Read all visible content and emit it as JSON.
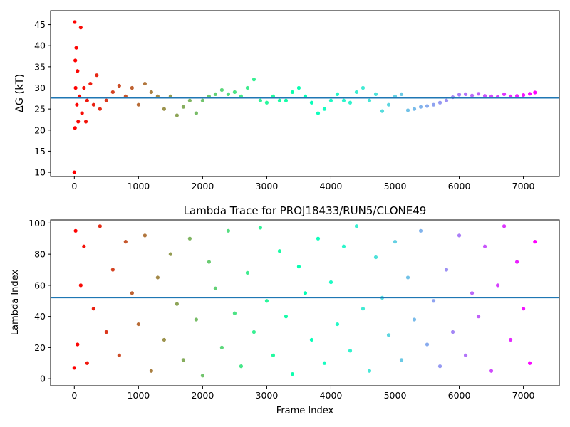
{
  "chart_data": [
    {
      "type": "scatter",
      "title": "",
      "xlabel": "",
      "ylabel": "ΔG (kT)",
      "xlim": [
        -370,
        7560
      ],
      "ylim": [
        9,
        48.3
      ],
      "xticks": [
        0,
        1000,
        2000,
        3000,
        4000,
        5000,
        6000,
        7000
      ],
      "yticks": [
        10,
        15,
        20,
        25,
        30,
        35,
        40,
        45
      ],
      "hline": 27.6,
      "hline_color": "#1f77b4",
      "colormap": "rainbow_r",
      "series": [
        {
          "x": [
            0,
            5,
            10,
            15,
            20,
            30,
            40,
            50,
            60,
            80,
            100,
            120,
            150,
            180,
            200,
            250,
            300,
            350,
            400,
            500,
            600,
            700,
            800,
            900,
            1000,
            1100,
            1200,
            1300,
            1400,
            1500,
            1600,
            1700,
            1800,
            1900,
            2000,
            2100,
            2200,
            2300,
            2400,
            2500,
            2600,
            2700,
            2800,
            2900,
            3000,
            3100,
            3200,
            3300,
            3400,
            3500,
            3600,
            3700,
            3800,
            3900,
            4000,
            4100,
            4200,
            4300,
            4400,
            4500,
            4600,
            4700,
            4800,
            4900,
            5000,
            5100,
            5200,
            5300,
            5400,
            5500,
            5600,
            5700,
            5800,
            5900,
            6000,
            6100,
            6200,
            6300,
            6400,
            6500,
            6600,
            6700,
            6800,
            6900,
            7000,
            7100,
            7180
          ],
          "y": [
            10,
            45.6,
            20.5,
            36.5,
            30,
            39.5,
            26,
            34,
            22,
            28,
            44.3,
            24,
            30,
            22,
            27,
            31,
            26,
            33,
            25,
            27,
            29,
            30.5,
            28,
            30,
            26,
            31,
            29,
            28,
            25,
            28,
            23.5,
            25.5,
            27,
            24,
            27,
            28,
            28.5,
            29.5,
            28.5,
            29,
            28,
            30,
            32,
            27,
            26.5,
            28,
            27,
            27,
            29,
            30,
            28,
            26.5,
            24,
            25,
            27,
            28.5,
            27,
            26.5,
            29,
            30,
            27,
            28.5,
            24.5,
            26,
            28,
            28.5,
            24.7,
            25,
            25.5,
            25.7,
            26,
            26.5,
            27,
            27.8,
            28.4,
            28.5,
            28.2,
            28.6,
            28.1,
            28.0,
            27.9,
            28.5,
            28.0,
            28.1,
            28.3,
            28.6,
            28.9
          ]
        }
      ]
    },
    {
      "type": "scatter",
      "title": "Lambda Trace for PROJ18433/RUN5/CLONE49",
      "xlabel": "Frame Index",
      "ylabel": "Lambda Index",
      "xlim": [
        -370,
        7560
      ],
      "ylim": [
        -4.5,
        102
      ],
      "xticks": [
        0,
        1000,
        2000,
        3000,
        4000,
        5000,
        6000,
        7000
      ],
      "yticks": [
        0,
        20,
        40,
        60,
        80,
        100
      ],
      "hline": 52,
      "hline_color": "#1f77b4",
      "colormap": "rainbow_r",
      "series": [
        {
          "x": [
            0,
            20,
            50,
            100,
            150,
            200,
            300,
            400,
            500,
            600,
            700,
            800,
            900,
            1000,
            1100,
            1200,
            1300,
            1400,
            1500,
            1600,
            1700,
            1800,
            1900,
            2000,
            2100,
            2200,
            2300,
            2400,
            2500,
            2600,
            2700,
            2800,
            2900,
            3000,
            3100,
            3200,
            3300,
            3400,
            3500,
            3600,
            3700,
            3800,
            3900,
            4000,
            4100,
            4200,
            4300,
            4400,
            4500,
            4600,
            4700,
            4800,
            4900,
            5000,
            5100,
            5200,
            5300,
            5400,
            5500,
            5600,
            5700,
            5800,
            5900,
            6000,
            6100,
            6200,
            6300,
            6400,
            6500,
            6600,
            6700,
            6800,
            6900,
            7000,
            7100,
            7180
          ],
          "y": [
            7,
            95,
            22,
            60,
            85,
            10,
            45,
            98,
            30,
            70,
            15,
            88,
            55,
            35,
            92,
            5,
            65,
            25,
            80,
            48,
            12,
            90,
            38,
            2,
            75,
            58,
            20,
            95,
            42,
            8,
            68,
            30,
            97,
            50,
            15,
            82,
            40,
            3,
            72,
            55,
            25,
            90,
            10,
            62,
            35,
            85,
            18,
            98,
            45,
            5,
            78,
            52,
            28,
            88,
            12,
            65,
            38,
            95,
            22,
            50,
            8,
            70,
            30,
            92,
            15,
            55,
            40,
            85,
            5,
            60,
            98,
            25,
            75,
            45,
            10,
            88
          ]
        }
      ]
    }
  ]
}
